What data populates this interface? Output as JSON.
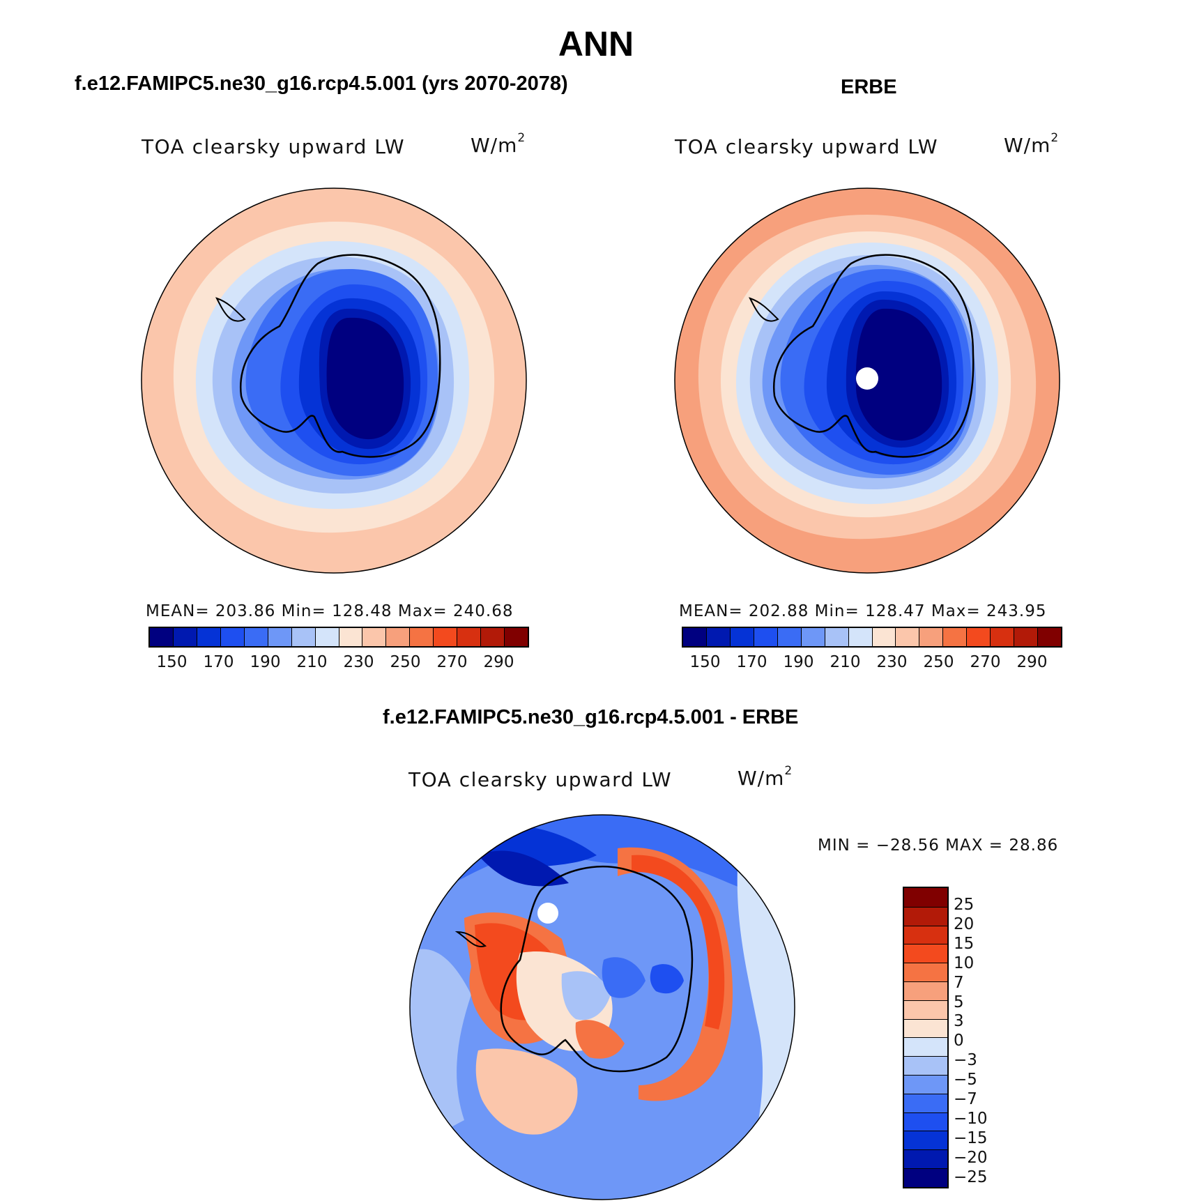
{
  "page_title": "ANN",
  "panels": [
    {
      "title": "f.e12.FAMIPC5.ne30_g16.rcp4.5.001 (yrs 2070-2078)",
      "field": "TOA clearsky upward LW",
      "units": "W/m",
      "units_sup": "2",
      "stats": "MEAN= 203.86   Min= 128.48   Max= 240.68",
      "colorbar_ticks": [
        "150",
        "170",
        "190",
        "210",
        "230",
        "250",
        "270",
        "290"
      ]
    },
    {
      "title": "ERBE",
      "field": "TOA clearsky upward LW",
      "units": "W/m",
      "units_sup": "2",
      "stats": "MEAN= 202.88   Min= 128.47   Max= 243.95",
      "colorbar_ticks": [
        "150",
        "170",
        "190",
        "210",
        "230",
        "250",
        "270",
        "290"
      ]
    },
    {
      "title": "f.e12.FAMIPC5.ne30_g16.rcp4.5.001 - ERBE",
      "field": "TOA clearsky upward LW",
      "units": "W/m",
      "units_sup": "2",
      "stats": "MIN = −28.56 MAX =   28.86",
      "colorbar_ticks": [
        "25",
        "20",
        "15",
        "10",
        "7",
        "5",
        "3",
        "0",
        "−3",
        "−5",
        "−7",
        "−10",
        "−15",
        "−20",
        "−25"
      ]
    }
  ],
  "colors": {
    "abs_scale": [
      "#000080",
      "#0019b0",
      "#0533d6",
      "#1e4ff0",
      "#3a6cf5",
      "#6e97f7",
      "#a8c2f7",
      "#d4e4fa",
      "#fbe4d3",
      "#fbc6ab",
      "#f7a07c",
      "#f57343",
      "#f34a1e",
      "#d73010",
      "#b21a08",
      "#800000"
    ],
    "diff_scale": [
      "#800000",
      "#b21a08",
      "#d73010",
      "#f34a1e",
      "#f57343",
      "#f7a07c",
      "#fbc6ab",
      "#fbe4d3",
      "#d4e4fa",
      "#a8c2f7",
      "#6e97f7",
      "#3a6cf5",
      "#1e4ff0",
      "#0533d6",
      "#0019b0",
      "#000080"
    ]
  }
}
